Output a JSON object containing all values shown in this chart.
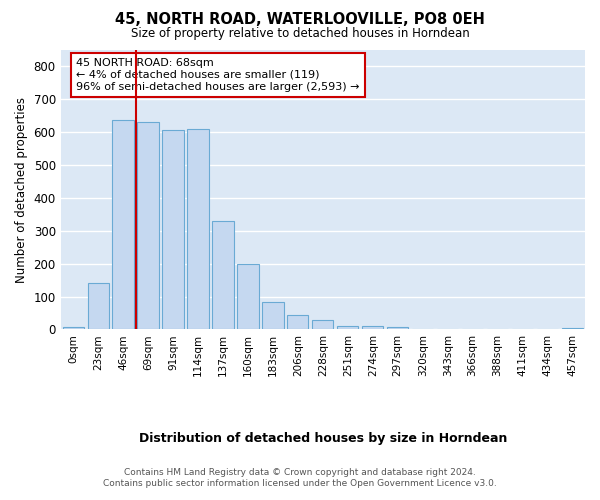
{
  "title": "45, NORTH ROAD, WATERLOOVILLE, PO8 0EH",
  "subtitle": "Size of property relative to detached houses in Horndean",
  "xlabel": "Distribution of detached houses by size in Horndean",
  "ylabel": "Number of detached properties",
  "bar_color": "#c5d8f0",
  "bar_edge_color": "#6aaad4",
  "background_color": "#dce8f5",
  "grid_color": "#ffffff",
  "fig_bg_color": "#ffffff",
  "marker_line_color": "#cc0000",
  "annotation_box_edge_color": "#cc0000",
  "categories": [
    "0sqm",
    "23sqm",
    "46sqm",
    "69sqm",
    "91sqm",
    "114sqm",
    "137sqm",
    "160sqm",
    "183sqm",
    "206sqm",
    "228sqm",
    "251sqm",
    "274sqm",
    "297sqm",
    "320sqm",
    "343sqm",
    "366sqm",
    "388sqm",
    "411sqm",
    "434sqm",
    "457sqm"
  ],
  "values": [
    7,
    142,
    637,
    630,
    607,
    610,
    330,
    200,
    83,
    45,
    28,
    12,
    11,
    6,
    0,
    0,
    0,
    0,
    0,
    0,
    5
  ],
  "ylim": [
    0,
    850
  ],
  "yticks": [
    0,
    100,
    200,
    300,
    400,
    500,
    600,
    700,
    800
  ],
  "marker_bin_index": 3,
  "annotation_title": "45 NORTH ROAD: 68sqm",
  "annotation_line1": "← 4% of detached houses are smaller (119)",
  "annotation_line2": "96% of semi-detached houses are larger (2,593) →",
  "footer_line1": "Contains HM Land Registry data © Crown copyright and database right 2024.",
  "footer_line2": "Contains public sector information licensed under the Open Government Licence v3.0."
}
